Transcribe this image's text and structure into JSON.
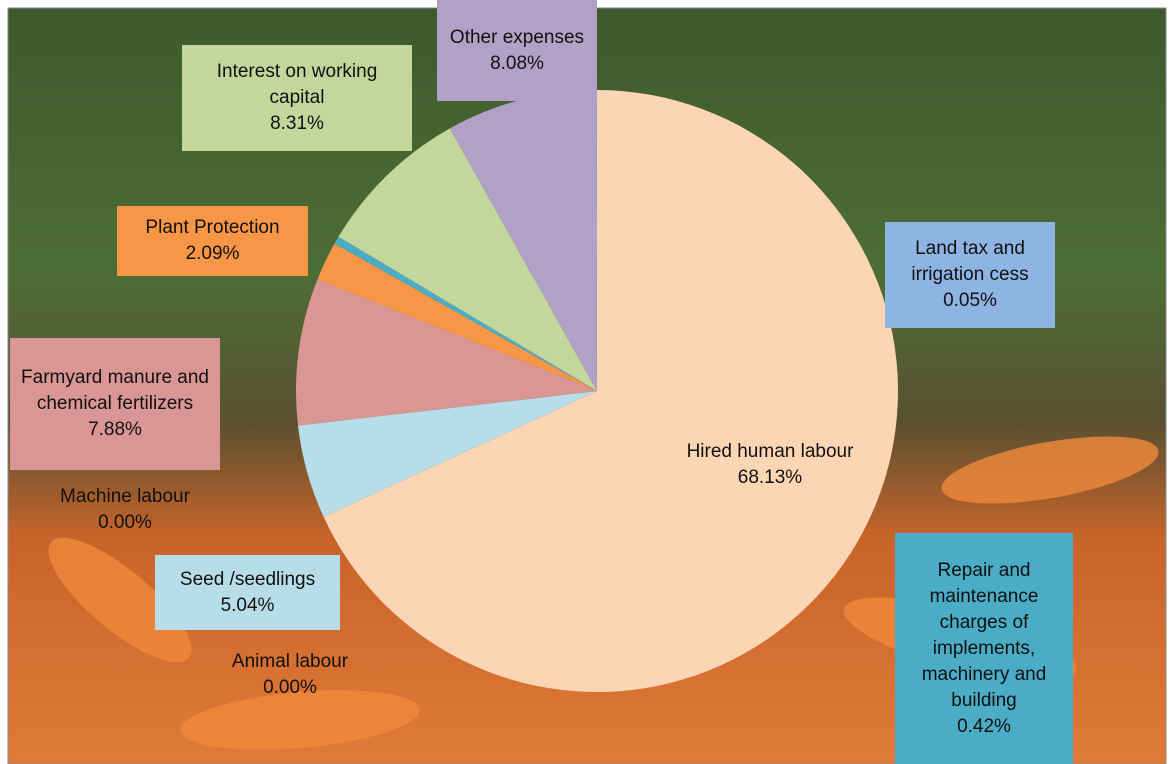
{
  "chart_data": {
    "type": "pie",
    "categories": [
      "Hired human labour",
      "Animal labour",
      "Seed /seedlings",
      "Machine labour",
      "Farmyard manure and chemical fertilizers",
      "Plant Protection",
      "Repair and maintenance charges of implements, machinery and building",
      "Interest on working capital",
      "Other expenses",
      "Land tax and irrigation cess"
    ],
    "values": [
      68.13,
      0.0,
      5.04,
      0.0,
      7.88,
      2.09,
      0.42,
      8.31,
      8.08,
      0.05
    ],
    "value_labels": [
      "68.13%",
      "0.00%",
      "5.04%",
      "0.00%",
      "7.88%",
      "2.09%",
      "0.42%",
      "8.31%",
      "8.08%",
      "0.05%"
    ],
    "colors": [
      "#fcd5b4",
      "#8e8e8e",
      "#b7dee8",
      "#7f7f7f",
      "#da9694",
      "#f79646",
      "#4bacc6",
      "#c3d69b",
      "#b2a1c7",
      "#8db4e2"
    ]
  }
}
